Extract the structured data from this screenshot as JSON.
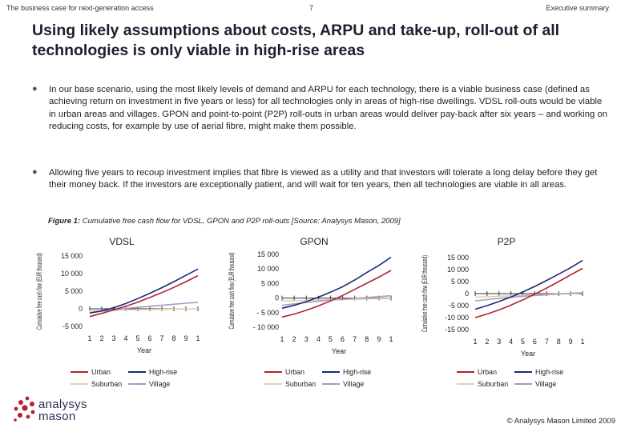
{
  "header": {
    "left": "The business case for next-generation access",
    "center": "7",
    "right": "Executive summary"
  },
  "title": "Using likely assumptions about costs, ARPU and take-up, roll-out of all technologies is only viable in high-rise areas",
  "bullets": [
    "In our base scenario, using the most likely levels of demand and ARPU for each technology, there is a viable business case (defined as achieving return on investment in five years or less) for all technologies only in areas of high-rise dwellings. VDSL roll-outs would be viable in urban areas and villages. GPON and point-to-point (P2P) roll-outs in urban areas would deliver pay-back after six years – and working on reducing costs, for example by use of aerial fibre, might make them possible.",
    "Allowing five years to recoup investment implies that fibre is viewed as a utility and that investors will tolerate a long delay before they get their money back. If the investors are exceptionally patient, and will wait for ten years, then all technologies are viable in all areas."
  ],
  "figure": {
    "label": "Figure 1:",
    "caption": "Cumulative free cash flow for VDSL, GPON and P2P roll-outs [Source: Analysys Mason, 2009]"
  },
  "colors": {
    "Urban": "#b22234",
    "High-rise": "#1c2a7a",
    "Suburban": "#e6cfa6",
    "Village": "#a79cc4"
  },
  "chart_data": [
    {
      "type": "line",
      "title": "VDSL",
      "ylabel": "Cumulative free cash flow (EUR thousand)",
      "xlabel": "Year",
      "categories": [
        "1",
        "2",
        "3",
        "4",
        "5",
        "6",
        "7",
        "8",
        "9",
        "1"
      ],
      "yticks": [
        "15 000",
        "10 000",
        "5 000",
        "0",
        "-5 000"
      ],
      "tick_values": [
        15000,
        10000,
        5000,
        0,
        -5000
      ],
      "ylim": [
        -5000,
        15000
      ],
      "series": [
        {
          "name": "Urban",
          "values": [
            -2200,
            -1300,
            -300,
            700,
            1900,
            3200,
            4600,
            6100,
            7700,
            9400
          ]
        },
        {
          "name": "High-rise",
          "values": [
            -1200,
            -600,
            300,
            1500,
            2900,
            4400,
            6000,
            7700,
            9500,
            11300
          ]
        },
        {
          "name": "Suburban",
          "values": [
            -600,
            -500,
            -400,
            -300,
            -250,
            -200,
            -150,
            -100,
            -60,
            0
          ]
        },
        {
          "name": "Village",
          "values": [
            -1100,
            -700,
            -300,
            100,
            400,
            700,
            1000,
            1300,
            1600,
            1800
          ]
        }
      ]
    },
    {
      "type": "line",
      "title": "GPON",
      "ylabel": "Cumulative free cash flow (EUR thousand)",
      "xlabel": "Year",
      "categories": [
        "1",
        "2",
        "3",
        "4",
        "5",
        "6",
        "7",
        "8",
        "9",
        "1"
      ],
      "yticks": [
        "15 000",
        "10 000",
        "5 000",
        "0",
        "- 5 000",
        "- 10 000"
      ],
      "tick_values": [
        15000,
        10000,
        5000,
        0,
        -5000,
        -10000
      ],
      "ylim": [
        -10000,
        15000
      ],
      "series": [
        {
          "name": "Urban",
          "values": [
            -6500,
            -5500,
            -4200,
            -2700,
            -1000,
            900,
            3000,
            5100,
            7200,
            9500
          ]
        },
        {
          "name": "High-rise",
          "values": [
            -3500,
            -2500,
            -1200,
            300,
            2000,
            3900,
            6200,
            8800,
            11200,
            14000
          ]
        },
        {
          "name": "Suburban",
          "values": [
            -1000,
            -900,
            -800,
            -700,
            -600,
            -500,
            -400,
            -300,
            -200,
            -100
          ]
        },
        {
          "name": "Village",
          "values": [
            -2500,
            -2000,
            -1500,
            -1100,
            -700,
            -400,
            -100,
            200,
            500,
            800
          ]
        }
      ]
    },
    {
      "type": "line",
      "title": "P2P",
      "ylabel": "Cumulative free cash flow (EUR thousand)",
      "xlabel": "Year",
      "categories": [
        "1",
        "2",
        "3",
        "4",
        "5",
        "6",
        "7",
        "8",
        "9",
        "1"
      ],
      "yticks": [
        "15 000",
        "10 000",
        "5 000",
        "0",
        "-5 000",
        "-10 000",
        "-15 000"
      ],
      "tick_values": [
        15000,
        10000,
        5000,
        0,
        -5000,
        -10000,
        -15000
      ],
      "ylim": [
        -15000,
        15000
      ],
      "series": [
        {
          "name": "Urban",
          "values": [
            -10000,
            -8500,
            -6800,
            -4800,
            -2600,
            -200,
            2300,
            5000,
            7800,
            10500
          ]
        },
        {
          "name": "High-rise",
          "values": [
            -6500,
            -5000,
            -3300,
            -1400,
            700,
            3000,
            5500,
            8100,
            10800,
            13800
          ]
        },
        {
          "name": "Suburban",
          "values": [
            -1500,
            -1300,
            -1100,
            -900,
            -700,
            -500,
            -300,
            -100,
            100,
            300
          ]
        },
        {
          "name": "Village",
          "values": [
            -3000,
            -2500,
            -2000,
            -1500,
            -1100,
            -800,
            -500,
            -200,
            100,
            300
          ]
        }
      ]
    }
  ],
  "legend_rows": [
    [
      "Urban",
      "High-rise"
    ],
    [
      "Suburban",
      "Village"
    ]
  ],
  "logo": {
    "line1": "analysys",
    "line2": "mason"
  },
  "copyright": "© Analysys Mason Limited 2009"
}
